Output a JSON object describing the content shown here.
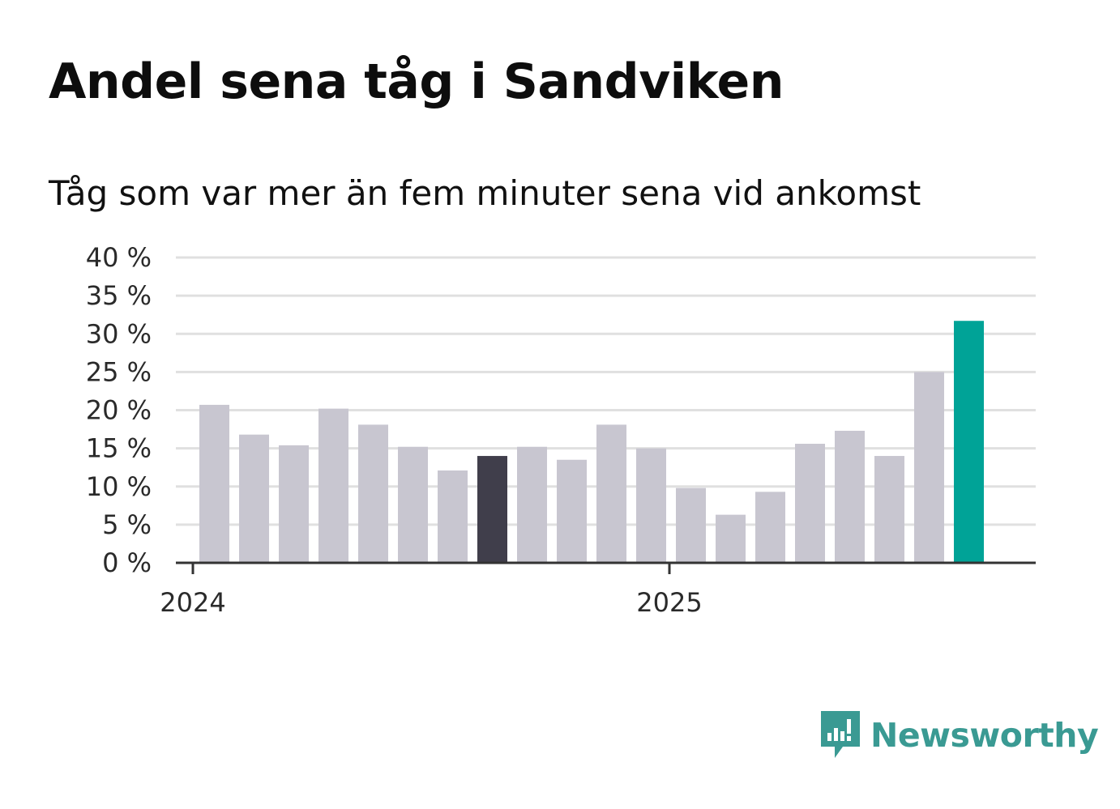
{
  "title": "Andel sena tåg i Sandviken",
  "subtitle": "Tåg som var mer än fem minuter sena vid ankomst",
  "brand": {
    "name": "Newsworthy",
    "color": "#3a9a93"
  },
  "colors": {
    "default_bar": "#c8c6d0",
    "highlight_bar": "#403e4b",
    "latest_bar": "#00a397",
    "grid": "#e0e0e0",
    "axis": "#333333"
  },
  "chart_data": {
    "type": "bar",
    "title": "Andel sena tåg i Sandviken",
    "subtitle": "Tåg som var mer än fem minuter sena vid ankomst",
    "xlabel": "",
    "ylabel": "",
    "ylim": [
      0,
      40
    ],
    "yticks": [
      0,
      5,
      10,
      15,
      20,
      25,
      30,
      35,
      40
    ],
    "ytick_suffix": " %",
    "grid": true,
    "categories": [
      "2024-01",
      "2024-02",
      "2024-03",
      "2024-04",
      "2024-05",
      "2024-06",
      "2024-07",
      "2024-08",
      "2024-09",
      "2024-10",
      "2024-11",
      "2024-12",
      "2025-01",
      "2025-02",
      "2025-03",
      "2025-04",
      "2025-05",
      "2025-06",
      "2025-07",
      "2025-08"
    ],
    "values": [
      20.7,
      16.8,
      15.4,
      20.2,
      18.1,
      15.2,
      12.1,
      14.0,
      15.2,
      13.5,
      18.1,
      15.0,
      9.8,
      6.3,
      9.3,
      15.6,
      17.3,
      14.0,
      25.0,
      31.7
    ],
    "highlight_index": 7,
    "latest_index": 19,
    "x_tick_labels": [
      {
        "label": "2024",
        "index": 0
      },
      {
        "label": "2025",
        "index": 12
      }
    ]
  }
}
